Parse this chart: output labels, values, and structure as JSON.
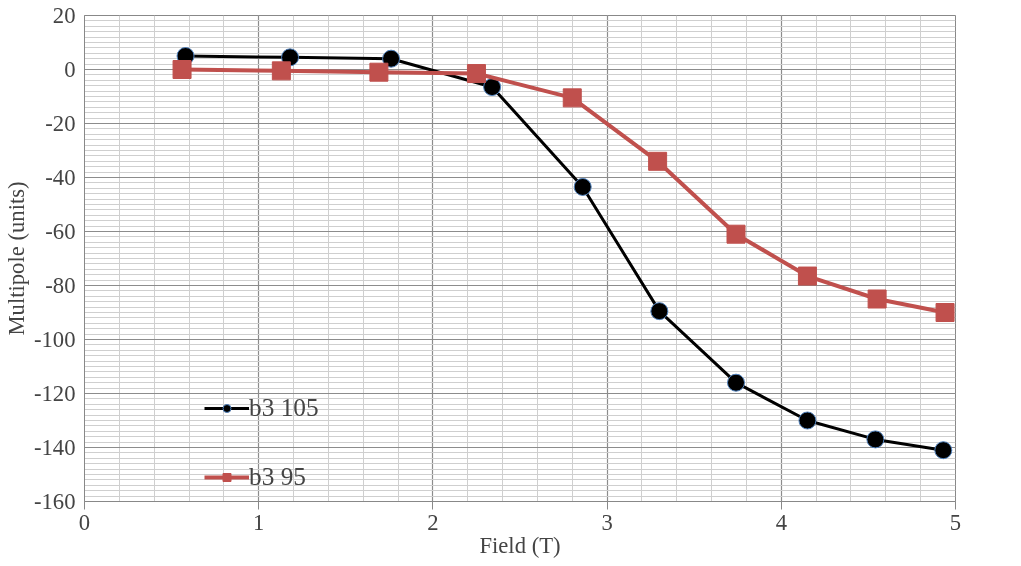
{
  "chart_data": {
    "type": "line",
    "xlabel": "Field (T)",
    "ylabel": "Multipole (units)",
    "xlim": [
      0,
      5
    ],
    "xticks": [
      0,
      1,
      2,
      3,
      4,
      5
    ],
    "ylim": [
      -160,
      20
    ],
    "yticks": [
      20,
      0,
      -20,
      -40,
      -60,
      -80,
      -100,
      -120,
      -140,
      -160
    ],
    "grid": true,
    "legend": "bottom left",
    "line_style": "solid",
    "series": [
      {
        "name": "b3 105",
        "color": "#000000",
        "marker": "circle",
        "x": [
          0.58,
          1.18,
          1.76,
          2.34,
          2.86,
          3.3,
          3.74,
          4.15,
          4.54,
          4.93
        ],
        "values": [
          5,
          4.5,
          4,
          -6.5,
          -43.5,
          -89.5,
          -116,
          -130,
          -137,
          -141
        ]
      },
      {
        "name": "b3 95",
        "color": "#c0504d",
        "marker": "square",
        "x": [
          0.56,
          1.13,
          1.69,
          2.25,
          2.8,
          3.29,
          3.74,
          4.15,
          4.55,
          4.94
        ],
        "values": [
          0,
          -0.5,
          -1,
          -1.5,
          -10.5,
          -34,
          -61,
          -76.5,
          -85,
          -90
        ]
      }
    ]
  }
}
